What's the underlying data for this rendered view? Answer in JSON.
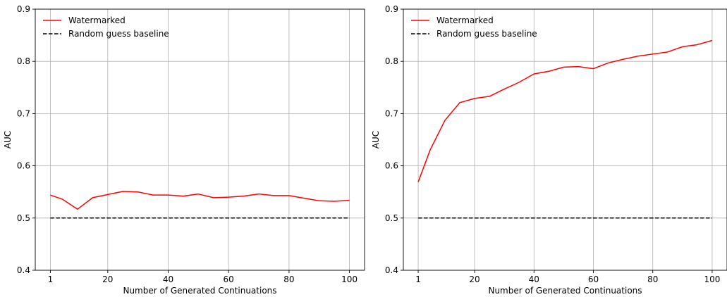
{
  "chart_data": [
    {
      "type": "line",
      "title": "",
      "xlabel": "Number of Generated Continuations",
      "ylabel": "AUC",
      "xlim": [
        -4,
        105
      ],
      "ylim": [
        0.4,
        0.9
      ],
      "xticks": [
        1,
        20,
        40,
        60,
        80,
        100
      ],
      "yticks": [
        0.4,
        0.5,
        0.6,
        0.7,
        0.8,
        0.9
      ],
      "xtick_labels": [
        "1",
        "20",
        "40",
        "60",
        "80",
        "100"
      ],
      "ytick_labels": [
        "0.4",
        "0.5",
        "0.6",
        "0.7",
        "0.8",
        "0.9"
      ],
      "grid": true,
      "legend_position": "top-left",
      "series": [
        {
          "name": "Watermarked",
          "color": "#ff0000",
          "style": "solid",
          "x": [
            1,
            5,
            10,
            15,
            20,
            25,
            30,
            35,
            40,
            45,
            50,
            55,
            60,
            65,
            70,
            75,
            80,
            85,
            90,
            95,
            100
          ],
          "y": [
            0.544,
            0.536,
            0.517,
            0.539,
            0.545,
            0.551,
            0.55,
            0.544,
            0.544,
            0.542,
            0.546,
            0.539,
            0.54,
            0.542,
            0.546,
            0.543,
            0.543,
            0.538,
            0.533,
            0.532,
            0.534
          ]
        },
        {
          "name": "Random guess baseline",
          "color": "#000000",
          "style": "dashed",
          "x": [
            1,
            100
          ],
          "y": [
            0.5,
            0.5
          ]
        }
      ]
    },
    {
      "type": "line",
      "title": "",
      "xlabel": "Number of Generated Continuations",
      "ylabel": "AUC",
      "xlim": [
        -4,
        105
      ],
      "ylim": [
        0.4,
        0.9
      ],
      "xticks": [
        1,
        20,
        40,
        60,
        80,
        100
      ],
      "yticks": [
        0.4,
        0.5,
        0.6,
        0.7,
        0.8,
        0.9
      ],
      "xtick_labels": [
        "1",
        "20",
        "40",
        "60",
        "80",
        "100"
      ],
      "ytick_labels": [
        "0.4",
        "0.5",
        "0.6",
        "0.7",
        "0.8",
        "0.9"
      ],
      "grid": true,
      "legend_position": "top-left",
      "series": [
        {
          "name": "Watermarked",
          "color": "#ff0000",
          "style": "solid",
          "x": [
            1,
            5,
            10,
            15,
            20,
            25,
            30,
            35,
            40,
            45,
            50,
            55,
            60,
            65,
            70,
            75,
            80,
            85,
            90,
            95,
            100
          ],
          "y": [
            0.569,
            0.63,
            0.687,
            0.721,
            0.729,
            0.733,
            0.747,
            0.76,
            0.776,
            0.781,
            0.789,
            0.79,
            0.786,
            0.797,
            0.804,
            0.81,
            0.814,
            0.818,
            0.828,
            0.832,
            0.84
          ]
        },
        {
          "name": "Random guess baseline",
          "color": "#000000",
          "style": "dashed",
          "x": [
            1,
            100
          ],
          "y": [
            0.5,
            0.5
          ]
        }
      ]
    }
  ]
}
